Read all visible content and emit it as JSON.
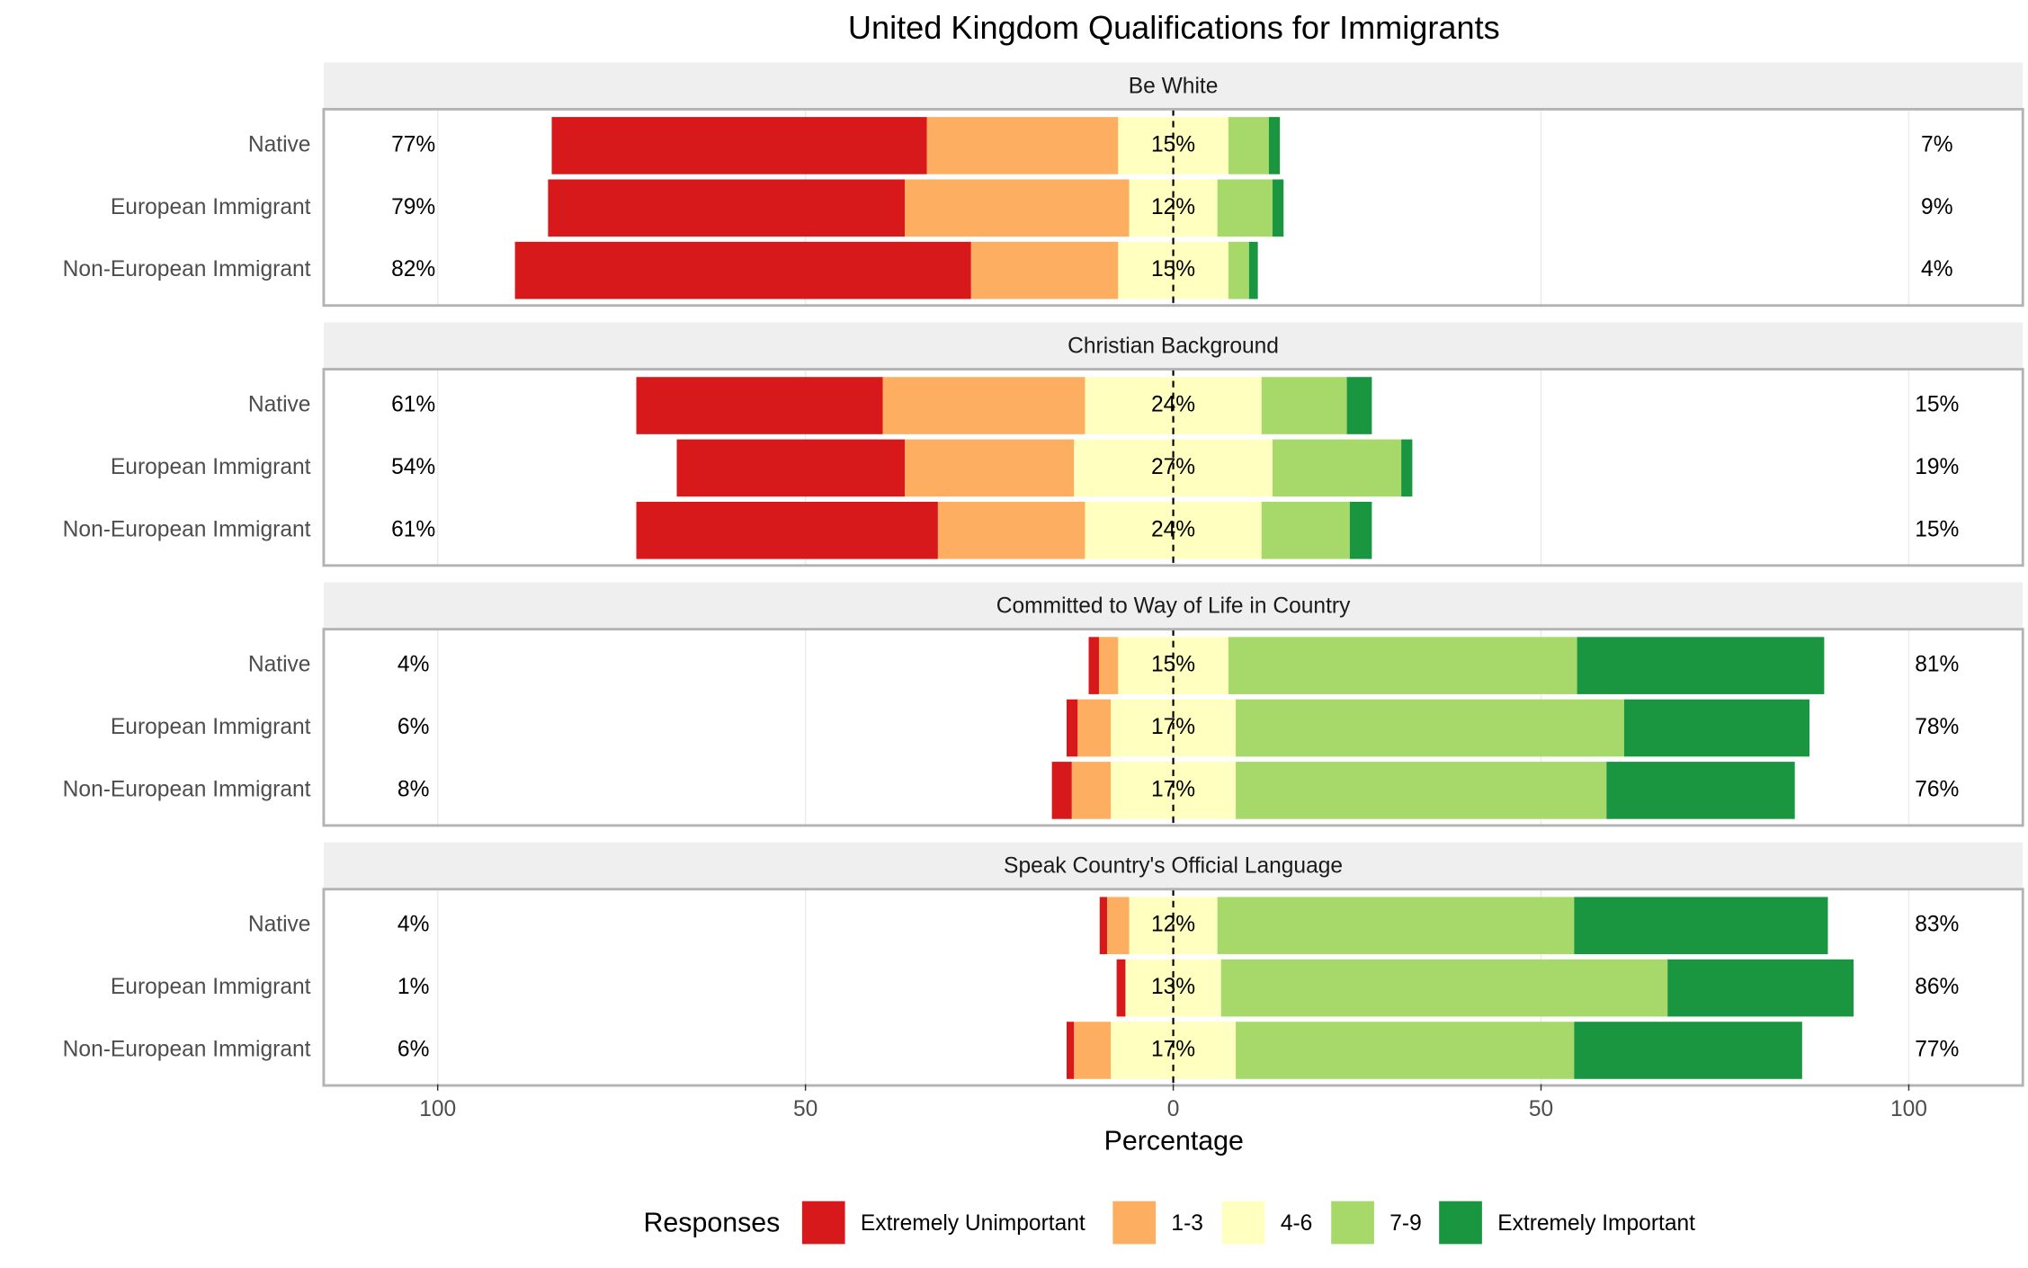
{
  "chart_data": {
    "type": "diverging_bar",
    "title": "United Kingdom Qualifications for Immigrants",
    "xlabel": "Percentage",
    "legend_title": "Responses",
    "categories": [
      "Native",
      "European Immigrant",
      "Non-European Immigrant"
    ],
    "xlim": [
      -115.5,
      115.5
    ],
    "xticks": [
      {
        "value": -100,
        "label": "100"
      },
      {
        "value": -50,
        "label": "50"
      },
      0,
      50,
      100
    ],
    "grid": true,
    "legend": "bottom",
    "series": [
      {
        "name": "Extremely Unimportant",
        "color": "#d7191c"
      },
      {
        "name": "1-3",
        "color": "#fdae61"
      },
      {
        "name": "4-6",
        "color": "#ffffbf"
      },
      {
        "name": "7-9",
        "color": "#a6d96a"
      },
      {
        "name": "Extremely Important",
        "color": "#1a9641"
      }
    ],
    "panels": [
      {
        "title": "Be White",
        "values": [
          [
            51,
            48.5,
            62
          ],
          [
            26,
            30.5,
            20
          ],
          [
            15,
            12,
            15
          ],
          [
            5.5,
            7.5,
            2.8
          ],
          [
            1.5,
            1.5,
            1.2
          ]
        ],
        "neutral_labels": [
          "15%",
          "12%",
          "15%"
        ],
        "left_labels": [
          "77%",
          "79%",
          "82%"
        ],
        "right_labels": [
          "7%",
          "9%",
          "4%"
        ]
      },
      {
        "title": "Christian Background",
        "values": [
          [
            33.5,
            31,
            41
          ],
          [
            27.5,
            23,
            20
          ],
          [
            24,
            27,
            24
          ],
          [
            11.6,
            17.5,
            12
          ],
          [
            3.4,
            1.5,
            3
          ]
        ],
        "neutral_labels": [
          "24%",
          "27%",
          "24%"
        ],
        "left_labels": [
          "61%",
          "54%",
          "61%"
        ],
        "right_labels": [
          "15%",
          "19%",
          "15%"
        ]
      },
      {
        "title": "Committed to Way of Life in Country",
        "values": [
          [
            1.4,
            1.5,
            2.7
          ],
          [
            2.6,
            4.5,
            5.3
          ],
          [
            15,
            17,
            17
          ],
          [
            47.4,
            52.8,
            50.4
          ],
          [
            33.6,
            25.2,
            25.6
          ]
        ],
        "neutral_labels": [
          "15%",
          "17%",
          "17%"
        ],
        "left_labels": [
          "4%",
          "6%",
          "8%"
        ],
        "right_labels": [
          "81%",
          "78%",
          "76%"
        ]
      },
      {
        "title": "Speak Country's Official Language",
        "values": [
          [
            1,
            1.2,
            1
          ],
          [
            3,
            0,
            5
          ],
          [
            12,
            13,
            17
          ],
          [
            48.5,
            60.7,
            46
          ],
          [
            34.5,
            25.3,
            31
          ]
        ],
        "neutral_labels": [
          "12%",
          "13%",
          "17%"
        ],
        "left_labels": [
          "4%",
          "1%",
          "6%"
        ],
        "right_labels": [
          "83%",
          "86%",
          "77%"
        ]
      }
    ]
  }
}
